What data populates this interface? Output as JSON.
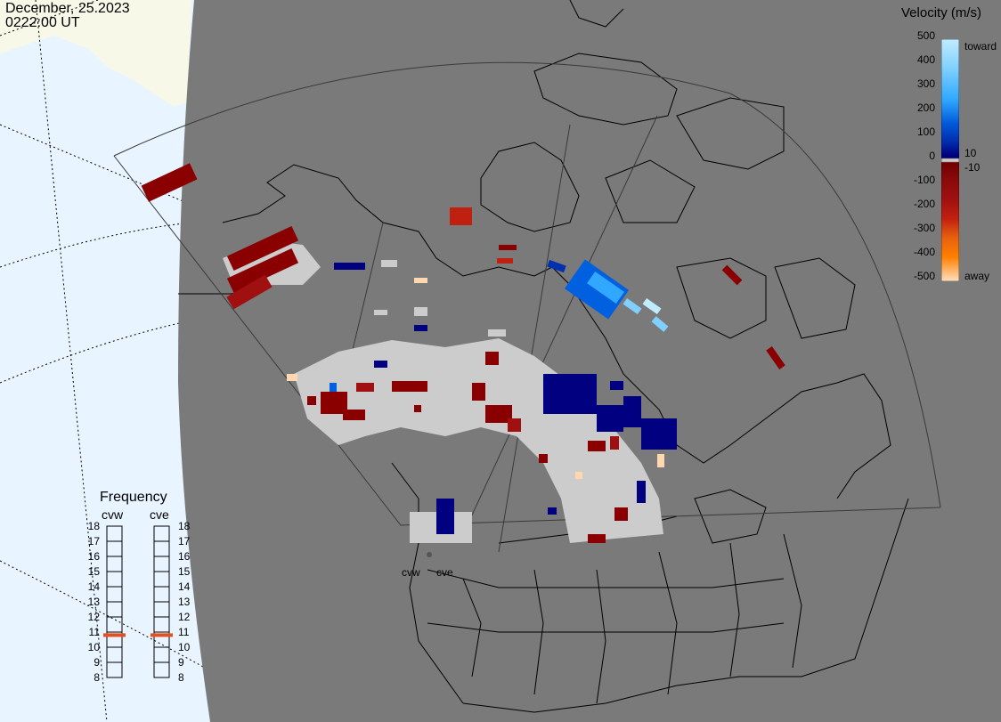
{
  "header": {
    "date": "December, 25.2023",
    "time": "0222:00 UT"
  },
  "colorbar": {
    "title": "Velocity (m/s)",
    "ticks": [
      500,
      400,
      300,
      200,
      100,
      0,
      -100,
      -200,
      -300,
      -400,
      -500
    ],
    "labels": {
      "toward": "toward",
      "away": "away",
      "plus10": "10",
      "minus10": "-10"
    },
    "colors": [
      "#ffe0c0",
      "#ffb060",
      "#ff8000",
      "#e86010",
      "#d04010",
      "#c02010",
      "#a01010",
      "#8a0a0a",
      "#700000",
      "#000060",
      "#00108a",
      "#0030b0",
      "#0058d8",
      "#0080f0",
      "#30a8ff",
      "#80d0ff",
      "#c0ecff"
    ]
  },
  "frequency": {
    "title": "Frequency",
    "radars": [
      "cvw",
      "cve"
    ],
    "scale": [
      18,
      17,
      16,
      15,
      14,
      13,
      12,
      11,
      10,
      9,
      8
    ],
    "values_mhz": [
      10.8,
      10.8
    ],
    "marker_color": "#e05020"
  },
  "map": {
    "background_globe": "#7a7a7a",
    "space_color": "#e8f4ff",
    "land_top_left": "#f8f8e8",
    "site_labels": [
      "cvw",
      "cve"
    ],
    "colors": {
      "ground_scatter": "#cccccc",
      "toward_dark": "#000080",
      "toward_mid": "#0060e0",
      "toward_light": "#80d0ff",
      "away_dark": "#8a0000",
      "away_mid": "#c02010",
      "away_light": "#ffd8b0"
    }
  }
}
